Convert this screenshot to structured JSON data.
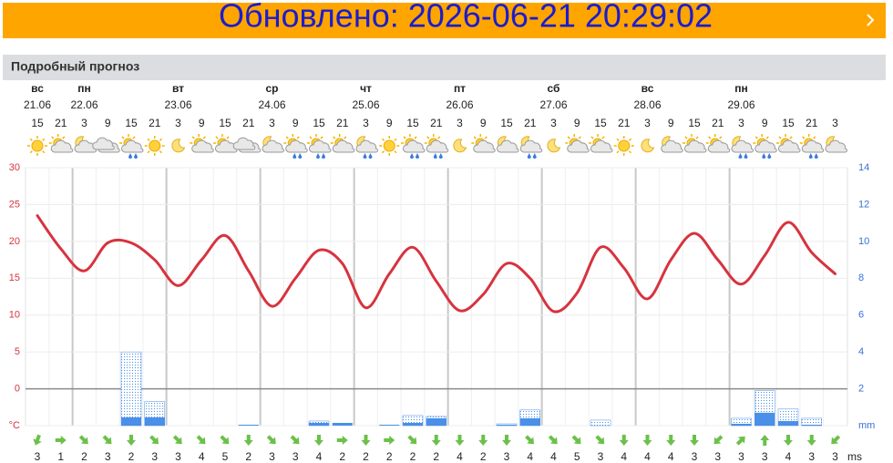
{
  "banner": {
    "text": "Обновлено: 2026-06-21 20:29:02"
  },
  "section": {
    "title": "Подробный прогноз"
  },
  "chart_data": {
    "type": "weather",
    "categories": [
      "15",
      "21",
      "3",
      "9",
      "15",
      "21",
      "3",
      "9",
      "15",
      "21",
      "3",
      "9",
      "15",
      "21",
      "3",
      "9",
      "15",
      "21",
      "3",
      "9",
      "15",
      "21",
      "3",
      "9",
      "15",
      "21",
      "3",
      "9",
      "15",
      "21",
      "3",
      "9",
      "15",
      "21",
      "3"
    ],
    "days": [
      "вс",
      null,
      "пн",
      null,
      null,
      null,
      "вт",
      null,
      null,
      null,
      "ср",
      null,
      null,
      null,
      "чт",
      null,
      null,
      null,
      "пт",
      null,
      null,
      null,
      "сб",
      null,
      null,
      null,
      "вс",
      null,
      null,
      null,
      "пн",
      null,
      null,
      null,
      null
    ],
    "dates": [
      "21.06",
      null,
      "22.06",
      null,
      null,
      null,
      "23.06",
      null,
      null,
      null,
      "24.06",
      null,
      null,
      null,
      "25.06",
      null,
      null,
      null,
      "26.06",
      null,
      null,
      null,
      "27.06",
      null,
      null,
      null,
      "28.06",
      null,
      null,
      null,
      "29.06",
      null,
      null,
      null,
      null
    ],
    "weather": [
      "sun",
      "sun-cloud",
      "moon-cloud",
      "cloud",
      "sun-rain",
      "sun",
      "moon",
      "sun-cloud",
      "sun-cloud",
      "cloud",
      "moon-cloud",
      "sun-rain",
      "sun-rain",
      "sun-cloud",
      "moon-rain",
      "sun",
      "sun-rain",
      "sun-rain",
      "moon",
      "sun-cloud",
      "moon-cloud",
      "moon-rain",
      "moon",
      "sun-cloud",
      "sun-cloud",
      "sun",
      "moon",
      "moon-cloud",
      "sun-cloud",
      "sun-cloud",
      "moon-rain",
      "sun-rain",
      "sun-cloud",
      "sun-rain",
      "moon-cloud"
    ],
    "temperature": {
      "color": "#d7333f",
      "values": [
        23.5,
        19.0,
        16.0,
        19.8,
        19.8,
        17.5,
        14.0,
        17.5,
        20.8,
        16.0,
        11.2,
        15.0,
        18.8,
        17.0,
        11.0,
        15.6,
        19.2,
        14.6,
        10.6,
        12.8,
        17.0,
        15.0,
        10.5,
        13.0,
        19.2,
        16.4,
        12.2,
        17.5,
        21.1,
        17.5,
        14.2,
        18.1,
        22.6,
        18.5,
        15.6
      ]
    },
    "precipitation": [
      {
        "color": "#4a8fe8",
        "style": "dotted",
        "values": [
          0,
          0,
          0,
          0,
          4,
          1.3,
          0,
          0,
          0,
          0,
          0,
          0,
          0.25,
          0,
          0,
          0,
          0.55,
          0.5,
          0,
          0,
          0.1,
          0.85,
          0,
          0,
          0.3,
          0,
          0,
          0,
          0,
          0,
          0.4,
          1.9,
          0.9,
          0.4,
          0
        ]
      },
      {
        "color": "#4a8fe8",
        "style": "solid",
        "values": [
          0,
          0,
          0,
          0,
          0.45,
          0.45,
          0,
          0,
          0,
          0.05,
          0,
          0,
          0.15,
          0.15,
          0,
          0.05,
          0.15,
          0.4,
          0,
          0,
          0.05,
          0.4,
          0,
          0,
          0,
          0,
          0,
          0,
          0,
          0,
          0.1,
          0.7,
          0.25,
          0.05,
          0
        ]
      }
    ],
    "ylim": [
      -5,
      30
    ],
    "yticks": [
      {
        "value": -5,
        "label": "°C"
      },
      0,
      5,
      10,
      15,
      20,
      25,
      30
    ],
    "y2lim": [
      0,
      14
    ],
    "y2ticks": [
      {
        "value": 0,
        "label": "mm"
      },
      2,
      4,
      6,
      8,
      10,
      12,
      14
    ],
    "grid": true,
    "wind": {
      "color": "#6cc04a",
      "unit": "ms",
      "direction": [
        200,
        90,
        135,
        135,
        180,
        135,
        135,
        135,
        135,
        180,
        135,
        135,
        180,
        90,
        180,
        90,
        135,
        180,
        180,
        180,
        180,
        135,
        135,
        135,
        135,
        180,
        180,
        180,
        180,
        225,
        45,
        0,
        180,
        180,
        225
      ],
      "speed": [
        3,
        1,
        2,
        3,
        2,
        3,
        3,
        4,
        5,
        2,
        3,
        3,
        4,
        2,
        2,
        2,
        2,
        2,
        4,
        2,
        3,
        4,
        4,
        5,
        3,
        4,
        4,
        4,
        3,
        3,
        3,
        3,
        4,
        3,
        3
      ]
    }
  }
}
